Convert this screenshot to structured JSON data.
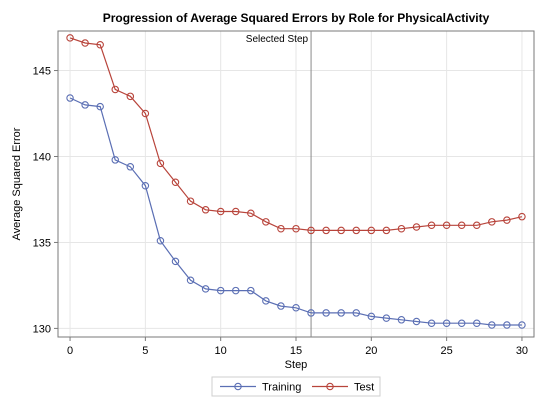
{
  "chart_data": {
    "type": "line",
    "title": "Progression of Average Squared Errors by Role for PhysicalActivity",
    "xlabel": "Step",
    "ylabel": "Average Squared Error",
    "xlim": [
      -0.8,
      30.8
    ],
    "ylim": [
      129.5,
      147.3
    ],
    "xticks": [
      0,
      5,
      10,
      15,
      20,
      25,
      30
    ],
    "yticks": [
      130,
      135,
      140,
      145
    ],
    "grid": true,
    "legend_position": "bottom-center",
    "reference_line": {
      "x": 16,
      "label": "Selected Step"
    },
    "x": [
      0,
      1,
      2,
      3,
      4,
      5,
      6,
      7,
      8,
      9,
      10,
      11,
      12,
      13,
      14,
      15,
      16,
      17,
      18,
      19,
      20,
      21,
      22,
      23,
      24,
      25,
      26,
      27,
      28,
      29,
      30
    ],
    "series": [
      {
        "name": "Training",
        "color": "#5b6fb4",
        "values": [
          143.4,
          143.0,
          142.9,
          139.8,
          139.4,
          138.3,
          135.1,
          133.9,
          132.8,
          132.3,
          132.2,
          132.2,
          132.2,
          131.6,
          131.3,
          131.2,
          130.9,
          130.9,
          130.9,
          130.9,
          130.7,
          130.6,
          130.5,
          130.4,
          130.3,
          130.3,
          130.3,
          130.3,
          130.2,
          130.2,
          130.2
        ]
      },
      {
        "name": "Test",
        "color": "#b8443b",
        "values": [
          146.9,
          146.6,
          146.5,
          143.9,
          143.5,
          142.5,
          139.6,
          138.5,
          137.4,
          136.9,
          136.8,
          136.8,
          136.7,
          136.2,
          135.8,
          135.8,
          135.7,
          135.7,
          135.7,
          135.7,
          135.7,
          135.7,
          135.8,
          135.9,
          136.0,
          136.0,
          136.0,
          136.0,
          136.2,
          136.3,
          136.5
        ]
      }
    ]
  }
}
